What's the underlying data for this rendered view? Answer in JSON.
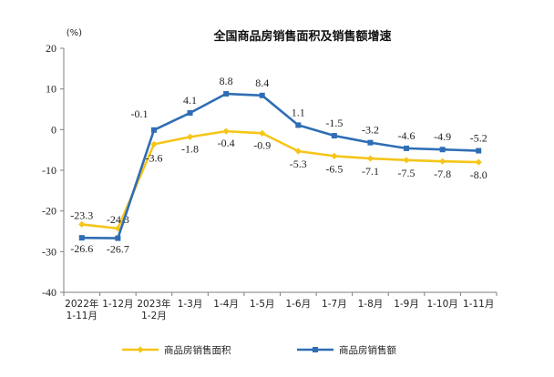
{
  "chart_data": {
    "type": "line",
    "title": "全国商品房销售面积及销售额增速",
    "unit_label": "(%)",
    "categories": [
      [
        "2022年",
        "1-11月"
      ],
      [
        "1-12月"
      ],
      [
        "2023年",
        "1-2月"
      ],
      [
        "1-3月"
      ],
      [
        "1-4月"
      ],
      [
        "1-5月"
      ],
      [
        "1-6月"
      ],
      [
        "1-7月"
      ],
      [
        "1-8月"
      ],
      [
        "1-9月"
      ],
      [
        "1-10月"
      ],
      [
        "1-11月"
      ]
    ],
    "ylim": [
      -40,
      20
    ],
    "yticks": [
      20,
      10,
      0,
      -10,
      -20,
      -30,
      -40
    ],
    "grid": false,
    "legend_position": "bottom",
    "series": [
      {
        "name": "商品房销售面积",
        "color": "#F5C518",
        "marker": "diamond",
        "values": [
          -23.3,
          -24.3,
          -3.6,
          -1.8,
          -0.4,
          -0.9,
          -5.3,
          -6.5,
          -7.1,
          -7.5,
          -7.8,
          -8.0
        ],
        "labels": [
          "-23.3",
          "-24.3",
          "-3.6",
          "-1.8",
          "-0.4",
          "-0.9",
          "-5.3",
          "-6.5",
          "-7.1",
          "-7.5",
          "-7.8",
          "-8.0"
        ]
      },
      {
        "name": "商品房销售额",
        "color": "#2F6DB5",
        "marker": "square",
        "values": [
          -26.6,
          -26.7,
          -0.1,
          4.1,
          8.8,
          8.4,
          1.1,
          -1.5,
          -3.2,
          -4.6,
          -4.9,
          -5.2
        ],
        "labels": [
          "-26.6",
          "-26.7",
          "-0.1",
          "4.1",
          "8.8",
          "8.4",
          "1.1",
          "-1.5",
          "-3.2",
          "-4.6",
          "-4.9",
          "-5.2"
        ]
      }
    ]
  }
}
